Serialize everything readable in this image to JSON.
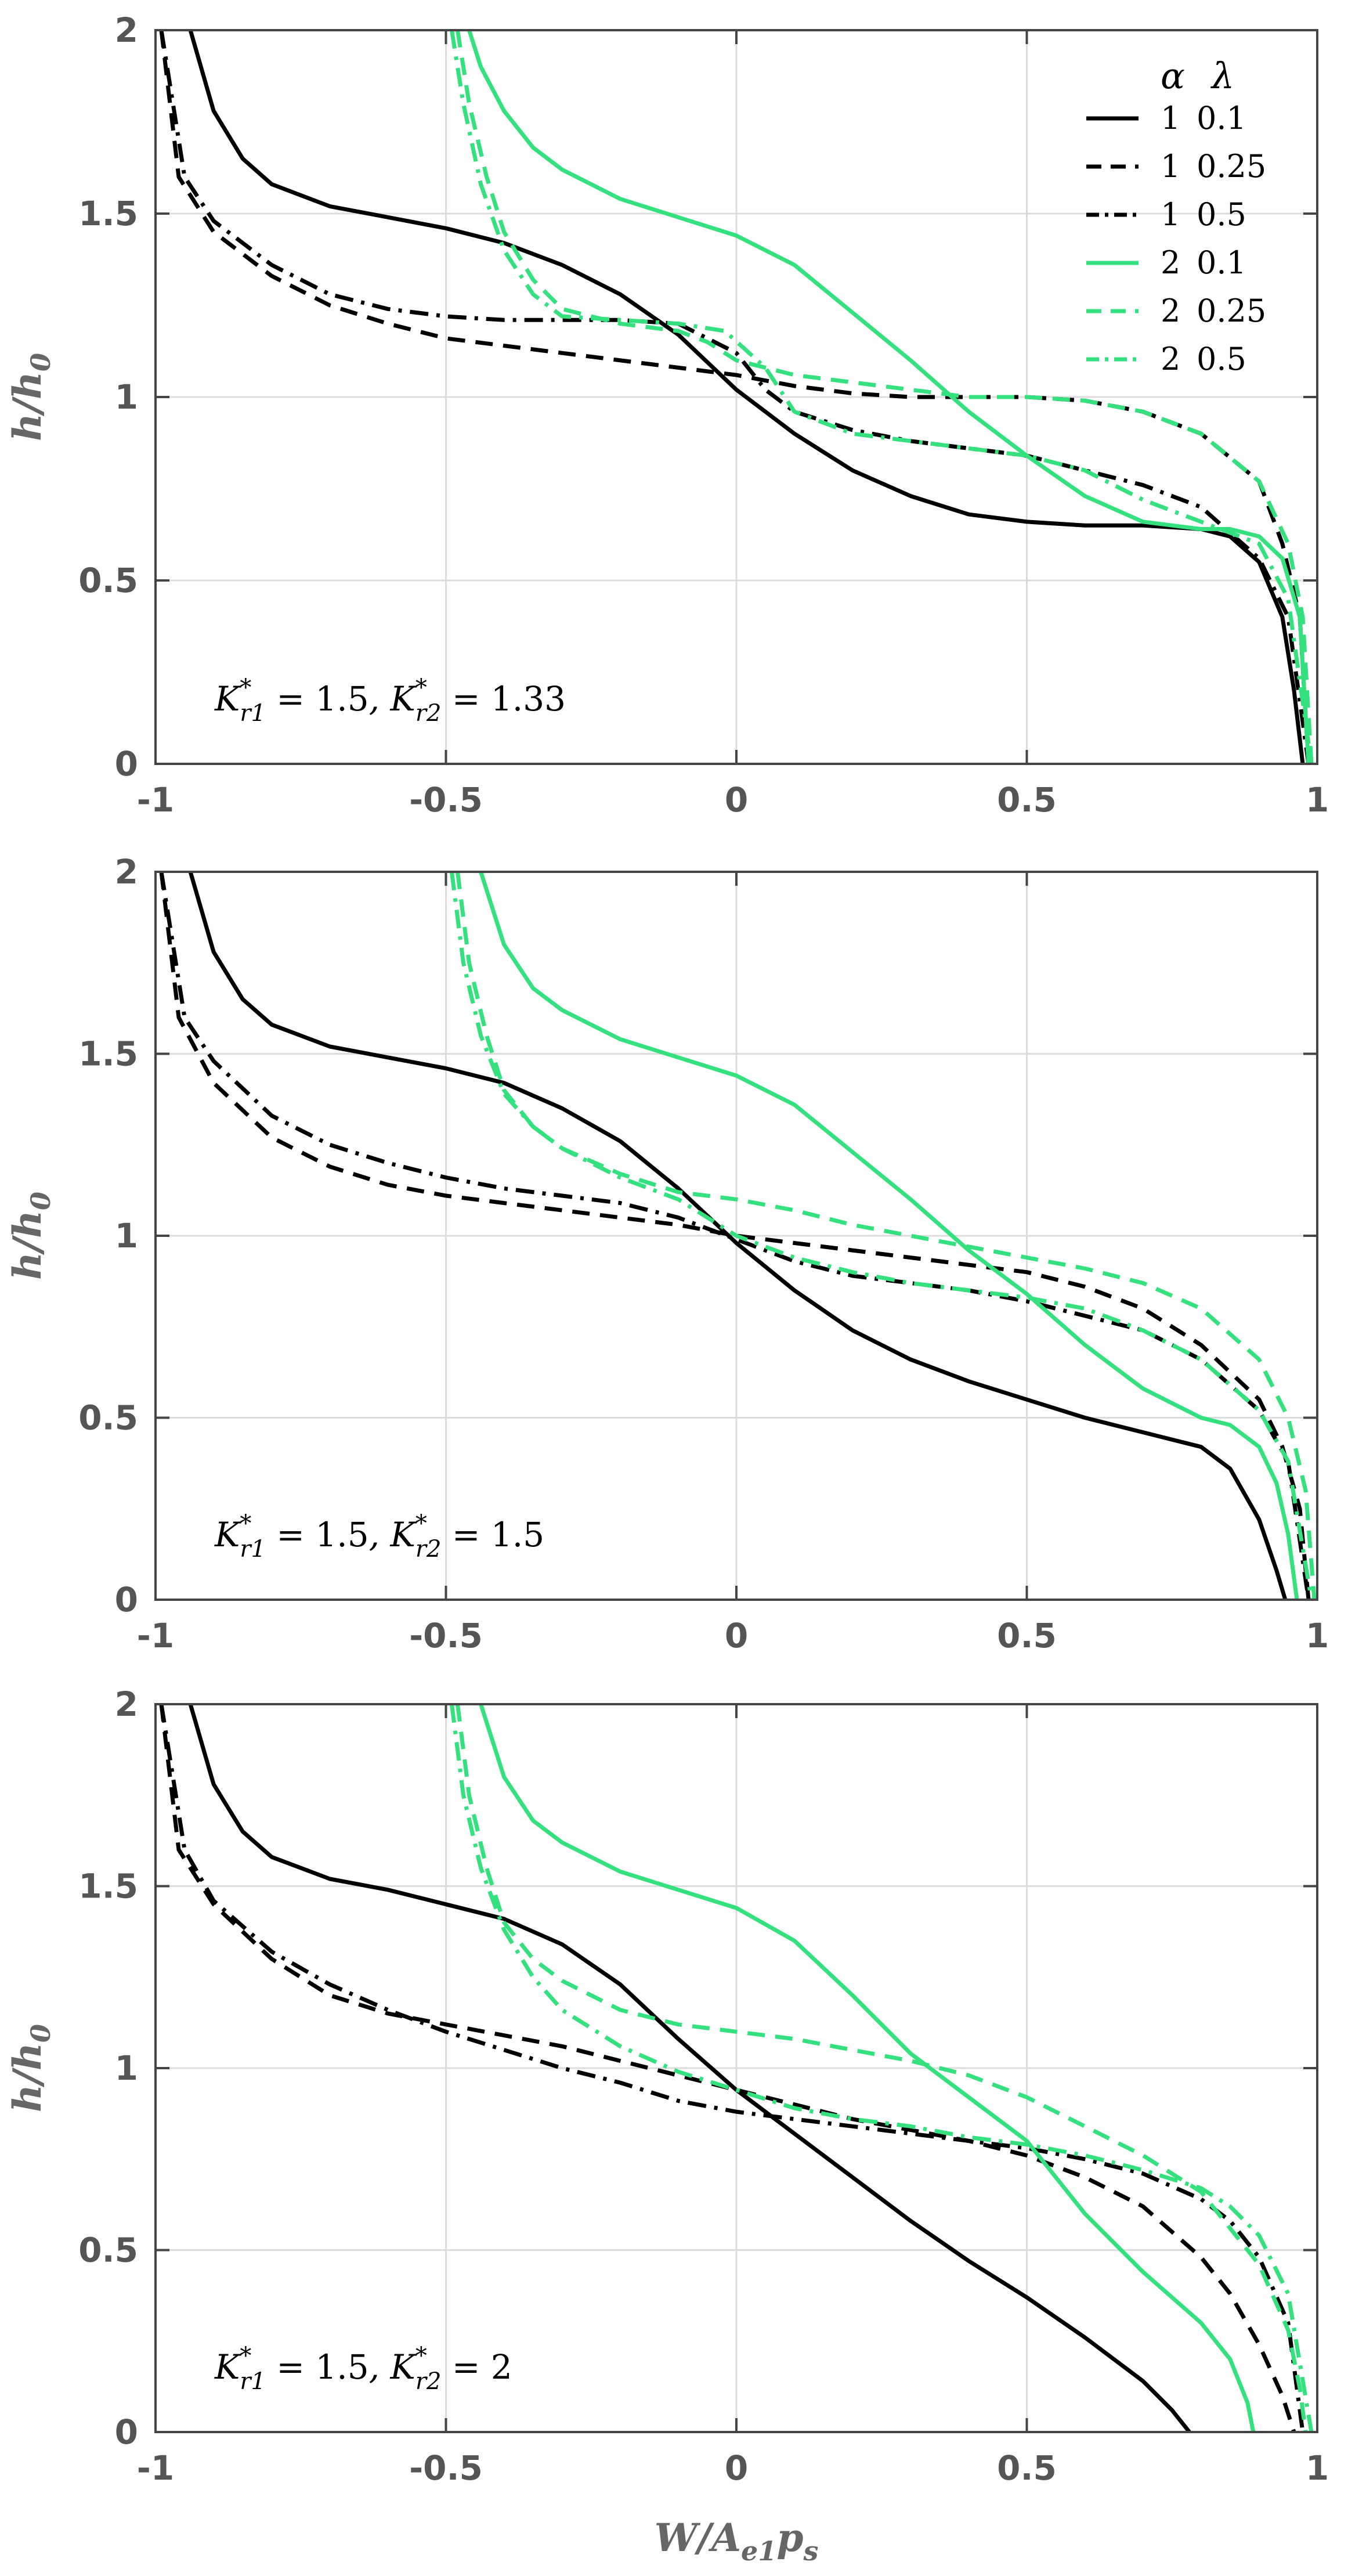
{
  "chart_data": [
    {
      "type": "line",
      "annotation": "K*r1 = 1.5,  K*r2 = 1.33",
      "ylabel": "h/h0",
      "xlim": [
        -1,
        1
      ],
      "ylim": [
        0,
        2
      ],
      "xticks": [
        "-1",
        "-0.5",
        "0",
        "0.5",
        "1"
      ],
      "yticks": [
        "0",
        "0.5",
        "1",
        "1.5",
        "2"
      ],
      "series": [
        {
          "alpha": "1",
          "lambda": "0.1",
          "color": "#000000",
          "dash": "solid",
          "x": [
            -0.94,
            -0.9,
            -0.85,
            -0.8,
            -0.7,
            -0.6,
            -0.5,
            -0.4,
            -0.3,
            -0.2,
            -0.1,
            0,
            0.1,
            0.2,
            0.3,
            0.4,
            0.5,
            0.6,
            0.7,
            0.8,
            0.85,
            0.9,
            0.94,
            0.96,
            0.975
          ],
          "y": [
            2.0,
            1.78,
            1.65,
            1.58,
            1.52,
            1.49,
            1.46,
            1.42,
            1.36,
            1.28,
            1.17,
            1.02,
            0.9,
            0.8,
            0.73,
            0.68,
            0.66,
            0.65,
            0.65,
            0.64,
            0.62,
            0.55,
            0.4,
            0.2,
            0.0
          ]
        },
        {
          "alpha": "1",
          "lambda": "0.25",
          "color": "#000000",
          "dash": "dash",
          "x": [
            -0.99,
            -0.96,
            -0.9,
            -0.8,
            -0.7,
            -0.6,
            -0.5,
            -0.3,
            -0.1,
            0,
            0.1,
            0.2,
            0.3,
            0.4,
            0.5,
            0.6,
            0.7,
            0.8,
            0.9,
            0.94,
            0.97,
            0.985
          ],
          "y": [
            2.0,
            1.6,
            1.45,
            1.33,
            1.25,
            1.2,
            1.16,
            1.12,
            1.08,
            1.06,
            1.03,
            1.01,
            1.0,
            1.0,
            1.0,
            0.99,
            0.96,
            0.9,
            0.77,
            0.6,
            0.4,
            0.0
          ]
        },
        {
          "alpha": "1",
          "lambda": "0.5",
          "color": "#000000",
          "dash": "dashdot",
          "x": [
            -0.99,
            -0.95,
            -0.9,
            -0.8,
            -0.7,
            -0.6,
            -0.5,
            -0.4,
            -0.3,
            -0.2,
            -0.1,
            0,
            0.05,
            0.1,
            0.2,
            0.3,
            0.4,
            0.5,
            0.6,
            0.7,
            0.8,
            0.9,
            0.95,
            0.985
          ],
          "y": [
            2.0,
            1.6,
            1.48,
            1.36,
            1.28,
            1.24,
            1.22,
            1.21,
            1.21,
            1.21,
            1.2,
            1.12,
            1.02,
            0.96,
            0.91,
            0.88,
            0.86,
            0.84,
            0.8,
            0.76,
            0.7,
            0.56,
            0.4,
            0.0
          ]
        },
        {
          "alpha": "2",
          "lambda": "0.1",
          "color": "#35e07e",
          "dash": "solid",
          "x": [
            -0.46,
            -0.44,
            -0.4,
            -0.35,
            -0.3,
            -0.2,
            -0.1,
            0,
            0.1,
            0.2,
            0.3,
            0.4,
            0.5,
            0.6,
            0.7,
            0.8,
            0.85,
            0.9,
            0.94,
            0.97,
            0.985
          ],
          "y": [
            2.0,
            1.9,
            1.78,
            1.68,
            1.62,
            1.54,
            1.49,
            1.44,
            1.36,
            1.23,
            1.1,
            0.96,
            0.84,
            0.73,
            0.66,
            0.64,
            0.64,
            0.62,
            0.56,
            0.4,
            0.0
          ]
        },
        {
          "alpha": "2",
          "lambda": "0.25",
          "color": "#35e07e",
          "dash": "dash",
          "x": [
            -0.48,
            -0.46,
            -0.43,
            -0.4,
            -0.35,
            -0.3,
            -0.2,
            -0.1,
            -0.05,
            0,
            0.1,
            0.2,
            0.3,
            0.4,
            0.5,
            0.6,
            0.7,
            0.8,
            0.9,
            0.95,
            0.975,
            0.99
          ],
          "y": [
            2.0,
            1.8,
            1.6,
            1.45,
            1.32,
            1.24,
            1.2,
            1.18,
            1.15,
            1.1,
            1.06,
            1.04,
            1.02,
            1.0,
            1.0,
            0.99,
            0.96,
            0.9,
            0.77,
            0.6,
            0.4,
            0.0
          ]
        },
        {
          "alpha": "2",
          "lambda": "0.5",
          "color": "#35e07e",
          "dash": "dashdot",
          "x": [
            -0.49,
            -0.47,
            -0.44,
            -0.4,
            -0.35,
            -0.3,
            -0.2,
            -0.1,
            -0.02,
            0.05,
            0.1,
            0.2,
            0.3,
            0.4,
            0.5,
            0.6,
            0.7,
            0.8,
            0.9,
            0.95,
            0.99
          ],
          "y": [
            2.0,
            1.8,
            1.58,
            1.4,
            1.28,
            1.22,
            1.21,
            1.2,
            1.18,
            1.08,
            0.96,
            0.9,
            0.88,
            0.86,
            0.84,
            0.8,
            0.72,
            0.66,
            0.6,
            0.45,
            0.0
          ]
        }
      ]
    },
    {
      "type": "line",
      "annotation": "K*r1 = 1.5,  K*r2 = 1.5",
      "ylabel": "h/h0",
      "xlim": [
        -1,
        1
      ],
      "ylim": [
        0,
        2
      ],
      "xticks": [
        "-1",
        "-0.5",
        "0",
        "0.5",
        "1"
      ],
      "yticks": [
        "0",
        "0.5",
        "1",
        "1.5",
        "2"
      ],
      "series": [
        {
          "alpha": "1",
          "lambda": "0.1",
          "color": "#000000",
          "dash": "solid",
          "x": [
            -0.94,
            -0.9,
            -0.85,
            -0.8,
            -0.7,
            -0.6,
            -0.5,
            -0.4,
            -0.3,
            -0.2,
            -0.1,
            0,
            0.1,
            0.2,
            0.3,
            0.4,
            0.5,
            0.6,
            0.7,
            0.8,
            0.85,
            0.9,
            0.93,
            0.945
          ],
          "y": [
            2.0,
            1.78,
            1.65,
            1.58,
            1.52,
            1.49,
            1.46,
            1.42,
            1.35,
            1.26,
            1.13,
            0.98,
            0.85,
            0.74,
            0.66,
            0.6,
            0.55,
            0.5,
            0.46,
            0.42,
            0.36,
            0.22,
            0.08,
            0.0
          ]
        },
        {
          "alpha": "1",
          "lambda": "0.25",
          "color": "#000000",
          "dash": "dash",
          "x": [
            -0.99,
            -0.96,
            -0.9,
            -0.8,
            -0.7,
            -0.6,
            -0.5,
            -0.4,
            -0.3,
            -0.2,
            -0.1,
            0,
            0.1,
            0.2,
            0.3,
            0.4,
            0.5,
            0.6,
            0.7,
            0.8,
            0.9,
            0.94,
            0.97,
            0.985
          ],
          "y": [
            2.0,
            1.6,
            1.42,
            1.27,
            1.19,
            1.14,
            1.11,
            1.09,
            1.07,
            1.05,
            1.03,
            1.0,
            0.98,
            0.96,
            0.94,
            0.92,
            0.9,
            0.86,
            0.8,
            0.7,
            0.55,
            0.42,
            0.25,
            0.0
          ]
        },
        {
          "alpha": "1",
          "lambda": "0.5",
          "color": "#000000",
          "dash": "dashdot",
          "x": [
            -0.99,
            -0.95,
            -0.9,
            -0.8,
            -0.7,
            -0.6,
            -0.5,
            -0.4,
            -0.3,
            -0.2,
            -0.1,
            0,
            0.1,
            0.2,
            0.3,
            0.4,
            0.5,
            0.6,
            0.7,
            0.8,
            0.9,
            0.95,
            0.985
          ],
          "y": [
            2.0,
            1.6,
            1.48,
            1.33,
            1.25,
            1.2,
            1.16,
            1.13,
            1.11,
            1.09,
            1.05,
            0.99,
            0.93,
            0.89,
            0.87,
            0.85,
            0.82,
            0.78,
            0.74,
            0.66,
            0.52,
            0.38,
            0.0
          ]
        },
        {
          "alpha": "2",
          "lambda": "0.1",
          "color": "#35e07e",
          "dash": "solid",
          "x": [
            -0.44,
            -0.42,
            -0.4,
            -0.35,
            -0.3,
            -0.2,
            -0.1,
            0,
            0.1,
            0.2,
            0.3,
            0.4,
            0.5,
            0.6,
            0.7,
            0.8,
            0.85,
            0.9,
            0.93,
            0.95,
            0.965
          ],
          "y": [
            2.0,
            1.9,
            1.8,
            1.68,
            1.62,
            1.54,
            1.49,
            1.44,
            1.36,
            1.23,
            1.1,
            0.96,
            0.84,
            0.7,
            0.58,
            0.5,
            0.48,
            0.42,
            0.32,
            0.18,
            0.0
          ]
        },
        {
          "alpha": "2",
          "lambda": "0.25",
          "color": "#35e07e",
          "dash": "dash",
          "x": [
            -0.48,
            -0.46,
            -0.43,
            -0.4,
            -0.35,
            -0.3,
            -0.2,
            -0.1,
            0,
            0.1,
            0.2,
            0.3,
            0.4,
            0.5,
            0.6,
            0.7,
            0.8,
            0.9,
            0.95,
            0.98,
            0.995
          ],
          "y": [
            2.0,
            1.75,
            1.55,
            1.4,
            1.3,
            1.24,
            1.17,
            1.12,
            1.1,
            1.07,
            1.03,
            1.0,
            0.97,
            0.94,
            0.91,
            0.87,
            0.8,
            0.66,
            0.5,
            0.3,
            0.0
          ]
        },
        {
          "alpha": "2",
          "lambda": "0.5",
          "color": "#35e07e",
          "dash": "dashdot",
          "x": [
            -0.49,
            -0.47,
            -0.44,
            -0.4,
            -0.35,
            -0.3,
            -0.2,
            -0.1,
            0,
            0.1,
            0.2,
            0.3,
            0.4,
            0.5,
            0.6,
            0.7,
            0.8,
            0.9,
            0.95,
            0.99
          ],
          "y": [
            2.0,
            1.75,
            1.55,
            1.39,
            1.3,
            1.24,
            1.16,
            1.1,
            1.0,
            0.94,
            0.9,
            0.87,
            0.85,
            0.83,
            0.8,
            0.74,
            0.66,
            0.52,
            0.38,
            0.0
          ]
        }
      ]
    },
    {
      "type": "line",
      "annotation": "K*r1 = 1.5,  K*r2 = 2",
      "ylabel": "h/h0",
      "xlabel": "W/Ae1ps",
      "xlim": [
        -1,
        1
      ],
      "ylim": [
        0,
        2
      ],
      "xticks": [
        "-1",
        "-0.5",
        "0",
        "0.5",
        "1"
      ],
      "yticks": [
        "0",
        "0.5",
        "1",
        "1.5",
        "2"
      ],
      "series": [
        {
          "alpha": "1",
          "lambda": "0.1",
          "color": "#000000",
          "dash": "solid",
          "x": [
            -0.94,
            -0.9,
            -0.85,
            -0.8,
            -0.7,
            -0.6,
            -0.5,
            -0.4,
            -0.3,
            -0.2,
            -0.1,
            0,
            0.1,
            0.2,
            0.3,
            0.4,
            0.5,
            0.6,
            0.7,
            0.75,
            0.78
          ],
          "y": [
            2.0,
            1.78,
            1.65,
            1.58,
            1.52,
            1.49,
            1.45,
            1.41,
            1.34,
            1.23,
            1.08,
            0.94,
            0.82,
            0.7,
            0.58,
            0.47,
            0.37,
            0.26,
            0.14,
            0.06,
            0.0
          ]
        },
        {
          "alpha": "1",
          "lambda": "0.25",
          "color": "#000000",
          "dash": "dash",
          "x": [
            -0.99,
            -0.96,
            -0.9,
            -0.8,
            -0.7,
            -0.6,
            -0.5,
            -0.4,
            -0.3,
            -0.2,
            -0.1,
            0,
            0.1,
            0.2,
            0.3,
            0.4,
            0.5,
            0.6,
            0.7,
            0.8,
            0.85,
            0.9,
            0.94,
            0.96
          ],
          "y": [
            2.0,
            1.6,
            1.45,
            1.3,
            1.2,
            1.15,
            1.12,
            1.09,
            1.06,
            1.02,
            0.98,
            0.94,
            0.9,
            0.86,
            0.83,
            0.8,
            0.76,
            0.7,
            0.62,
            0.48,
            0.38,
            0.24,
            0.1,
            0.0
          ]
        },
        {
          "alpha": "1",
          "lambda": "0.5",
          "color": "#000000",
          "dash": "dashdot",
          "x": [
            -0.99,
            -0.95,
            -0.9,
            -0.8,
            -0.7,
            -0.6,
            -0.5,
            -0.4,
            -0.3,
            -0.2,
            -0.1,
            0,
            0.1,
            0.2,
            0.3,
            0.4,
            0.5,
            0.6,
            0.7,
            0.8,
            0.85,
            0.9,
            0.95,
            0.975
          ],
          "y": [
            2.0,
            1.6,
            1.46,
            1.32,
            1.23,
            1.16,
            1.1,
            1.05,
            1.0,
            0.96,
            0.91,
            0.88,
            0.86,
            0.84,
            0.82,
            0.8,
            0.78,
            0.75,
            0.71,
            0.64,
            0.58,
            0.48,
            0.3,
            0.0
          ]
        },
        {
          "alpha": "2",
          "lambda": "0.1",
          "color": "#35e07e",
          "dash": "solid",
          "x": [
            -0.44,
            -0.42,
            -0.4,
            -0.35,
            -0.3,
            -0.2,
            -0.1,
            0,
            0.1,
            0.2,
            0.3,
            0.4,
            0.5,
            0.6,
            0.7,
            0.8,
            0.85,
            0.88,
            0.89
          ],
          "y": [
            2.0,
            1.9,
            1.8,
            1.68,
            1.62,
            1.54,
            1.49,
            1.44,
            1.35,
            1.2,
            1.04,
            0.92,
            0.8,
            0.6,
            0.44,
            0.3,
            0.2,
            0.08,
            0.0
          ]
        },
        {
          "alpha": "2",
          "lambda": "0.25",
          "color": "#35e07e",
          "dash": "dash",
          "x": [
            -0.48,
            -0.46,
            -0.43,
            -0.4,
            -0.35,
            -0.3,
            -0.2,
            -0.1,
            0,
            0.1,
            0.2,
            0.3,
            0.4,
            0.5,
            0.6,
            0.7,
            0.8,
            0.9,
            0.95,
            0.97,
            0.98
          ],
          "y": [
            2.0,
            1.75,
            1.55,
            1.4,
            1.3,
            1.24,
            1.16,
            1.12,
            1.1,
            1.08,
            1.05,
            1.02,
            0.98,
            0.92,
            0.84,
            0.76,
            0.66,
            0.46,
            0.28,
            0.12,
            0.0
          ]
        },
        {
          "alpha": "2",
          "lambda": "0.5",
          "color": "#35e07e",
          "dash": "dashdot",
          "x": [
            -0.49,
            -0.47,
            -0.44,
            -0.4,
            -0.35,
            -0.3,
            -0.2,
            -0.1,
            0,
            0.1,
            0.2,
            0.3,
            0.4,
            0.5,
            0.6,
            0.7,
            0.8,
            0.85,
            0.9,
            0.95,
            0.99
          ],
          "y": [
            2.0,
            1.75,
            1.55,
            1.38,
            1.25,
            1.16,
            1.06,
            0.99,
            0.94,
            0.89,
            0.86,
            0.84,
            0.81,
            0.79,
            0.76,
            0.72,
            0.67,
            0.62,
            0.54,
            0.38,
            0.0
          ]
        }
      ]
    }
  ],
  "legend": {
    "head_alpha": "α",
    "head_lambda": "λ",
    "entries": [
      {
        "alpha": "1",
        "lambda": "0.1"
      },
      {
        "alpha": "1",
        "lambda": "0.25"
      },
      {
        "alpha": "1",
        "lambda": "0.5"
      },
      {
        "alpha": "2",
        "lambda": "0.1"
      },
      {
        "alpha": "2",
        "lambda": "0.25"
      },
      {
        "alpha": "2",
        "lambda": "0.5"
      }
    ]
  }
}
